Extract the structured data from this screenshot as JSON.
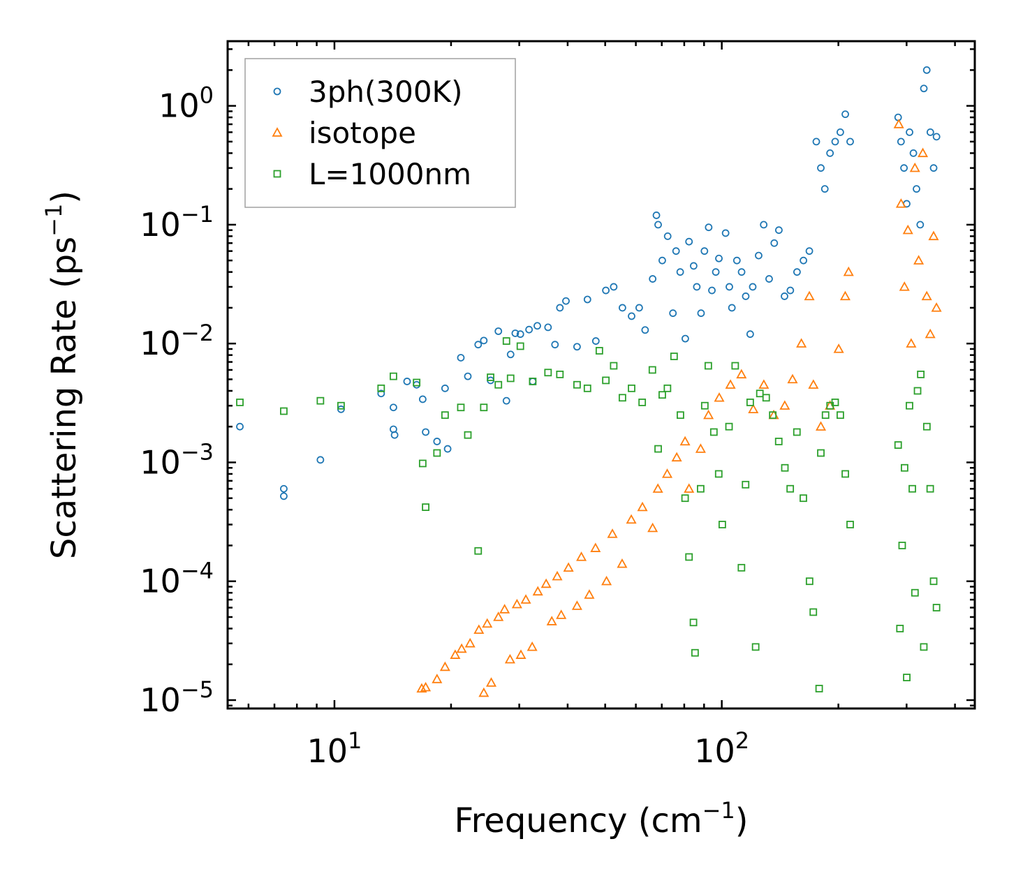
{
  "chart_data": {
    "type": "scatter",
    "xscale": "log",
    "yscale": "log",
    "xlim": [
      5.3,
      450
    ],
    "ylim": [
      8.5e-06,
      3.5
    ],
    "xlabel": "Frequency (cm",
    "xlabel_sup": "−1",
    "xlabel_end": ")",
    "ylabel": "Scattering Rate (ps",
    "ylabel_sup": "−1",
    "ylabel_end": ")",
    "x_ticks": [
      {
        "value": 10,
        "base": "10",
        "exp": "1"
      },
      {
        "value": 100,
        "base": "10",
        "exp": "2"
      }
    ],
    "y_ticks": [
      {
        "value": 1,
        "base": "10",
        "exp": "0"
      },
      {
        "value": 0.1,
        "base": "10",
        "exp": "−1"
      },
      {
        "value": 0.01,
        "base": "10",
        "exp": "−2"
      },
      {
        "value": 0.001,
        "base": "10",
        "exp": "−3"
      },
      {
        "value": 0.0001,
        "base": "10",
        "exp": "−4"
      },
      {
        "value": 1e-05,
        "base": "10",
        "exp": "−5"
      }
    ],
    "legend_position": "upper-left",
    "series": [
      {
        "name": "3ph(300K)",
        "marker": "circle",
        "color": "#1f77b4",
        "points": [
          [
            5.7,
            0.002
          ],
          [
            7.4,
            0.0006
          ],
          [
            7.4,
            0.00052
          ],
          [
            9.2,
            0.00105
          ],
          [
            10.4,
            0.0028
          ],
          [
            13.2,
            0.0038
          ],
          [
            14.2,
            0.0019
          ],
          [
            14.2,
            0.0029
          ],
          [
            14.3,
            0.0017
          ],
          [
            15.4,
            0.0048
          ],
          [
            16.3,
            0.0045
          ],
          [
            16.9,
            0.0034
          ],
          [
            17.2,
            0.0018
          ],
          [
            18.4,
            0.0015
          ],
          [
            19.3,
            0.0042
          ],
          [
            19.6,
            0.0013
          ],
          [
            21.2,
            0.0076
          ],
          [
            22.1,
            0.0053
          ],
          [
            23.5,
            0.0098
          ],
          [
            24.3,
            0.0106
          ],
          [
            25.3,
            0.0049
          ],
          [
            26.5,
            0.0127
          ],
          [
            27.8,
            0.0033
          ],
          [
            28.5,
            0.0081
          ],
          [
            29.3,
            0.0122
          ],
          [
            30.2,
            0.012
          ],
          [
            31.8,
            0.0131
          ],
          [
            32.5,
            0.0048
          ],
          [
            33.4,
            0.0141
          ],
          [
            35.6,
            0.0137
          ],
          [
            37.1,
            0.0098
          ],
          [
            38.2,
            0.02
          ],
          [
            39.6,
            0.0228
          ],
          [
            42.3,
            0.0094
          ],
          [
            45.0,
            0.0235
          ],
          [
            47.3,
            0.0105
          ],
          [
            50.2,
            0.028
          ],
          [
            52.6,
            0.03
          ],
          [
            55.4,
            0.02
          ],
          [
            58.5,
            0.017
          ],
          [
            61.2,
            0.02
          ],
          [
            63.4,
            0.013
          ],
          [
            66.3,
            0.035
          ],
          [
            67.8,
            0.12
          ],
          [
            68.5,
            0.1
          ],
          [
            70.2,
            0.05
          ],
          [
            72.5,
            0.08
          ],
          [
            74.8,
            0.018
          ],
          [
            76.2,
            0.06
          ],
          [
            78.1,
            0.04
          ],
          [
            80.5,
            0.011
          ],
          [
            82.3,
            0.072
          ],
          [
            84.6,
            0.045
          ],
          [
            86.2,
            0.03
          ],
          [
            88.4,
            0.018
          ],
          [
            90.2,
            0.06
          ],
          [
            92.5,
            0.095
          ],
          [
            94.3,
            0.028
          ],
          [
            96.5,
            0.04
          ],
          [
            98.3,
            0.052
          ],
          [
            102.3,
            0.085
          ],
          [
            104.6,
            0.03
          ],
          [
            106.2,
            0.02
          ],
          [
            109.4,
            0.05
          ],
          [
            112.5,
            0.04
          ],
          [
            115.3,
            0.025
          ],
          [
            118.4,
            0.012
          ],
          [
            120.2,
            0.03
          ],
          [
            124.5,
            0.055
          ],
          [
            128.3,
            0.1
          ],
          [
            132.5,
            0.035
          ],
          [
            136.6,
            0.07
          ],
          [
            140.4,
            0.09
          ],
          [
            145.2,
            0.025
          ],
          [
            150.3,
            0.028
          ],
          [
            156.4,
            0.04
          ],
          [
            162.5,
            0.05
          ],
          [
            168.3,
            0.06
          ],
          [
            175.4,
            0.5
          ],
          [
            180.2,
            0.3
          ],
          [
            184.5,
            0.2
          ],
          [
            190.3,
            0.4
          ],
          [
            196.2,
            0.5
          ],
          [
            202.3,
            0.6
          ],
          [
            208.4,
            0.85
          ],
          [
            214.5,
            0.5
          ],
          [
            285.3,
            0.8
          ],
          [
            290.2,
            0.5
          ],
          [
            295.4,
            0.3
          ],
          [
            300.2,
            0.15
          ],
          [
            305.3,
            0.6
          ],
          [
            312.4,
            0.4
          ],
          [
            318.2,
            0.2
          ],
          [
            325.3,
            0.1
          ],
          [
            332.4,
            1.4
          ],
          [
            338.2,
            2.0
          ],
          [
            345.5,
            0.6
          ],
          [
            352.3,
            0.3
          ],
          [
            358.4,
            0.55
          ]
        ]
      },
      {
        "name": "isotope",
        "marker": "triangle",
        "color": "#ff7f0e",
        "points": [
          [
            16.8,
            1.25e-05
          ],
          [
            17.2,
            1.28e-05
          ],
          [
            18.4,
            1.5e-05
          ],
          [
            19.3,
            1.9e-05
          ],
          [
            20.5,
            2.4e-05
          ],
          [
            21.3,
            2.7e-05
          ],
          [
            22.4,
            3e-05
          ],
          [
            23.6,
            3.9e-05
          ],
          [
            24.3,
            1.15e-05
          ],
          [
            24.8,
            4.4e-05
          ],
          [
            25.4,
            1.4e-05
          ],
          [
            26.5,
            5e-05
          ],
          [
            27.5,
            5.8e-05
          ],
          [
            28.4,
            2.2e-05
          ],
          [
            29.6,
            6.4e-05
          ],
          [
            30.3,
            2.4e-05
          ],
          [
            31.2,
            7e-05
          ],
          [
            32.4,
            2.8e-05
          ],
          [
            33.5,
            8.2e-05
          ],
          [
            35.2,
            9.5e-05
          ],
          [
            36.4,
            4.6e-05
          ],
          [
            37.6,
            0.00011
          ],
          [
            38.5,
            5.2e-05
          ],
          [
            40.2,
            0.00013
          ],
          [
            42.3,
            6.2e-05
          ],
          [
            43.4,
            0.00016
          ],
          [
            45.5,
            7.7e-05
          ],
          [
            47.2,
            0.00019
          ],
          [
            50.4,
            0.0001
          ],
          [
            52.2,
            0.00025
          ],
          [
            55.3,
            0.00014
          ],
          [
            58.4,
            0.00033
          ],
          [
            62.4,
            0.00042
          ],
          [
            66.3,
            0.00028
          ],
          [
            68.4,
            0.0006
          ],
          [
            72.3,
            0.0008
          ],
          [
            76.5,
            0.0011
          ],
          [
            80.4,
            0.0015
          ],
          [
            82.3,
            0.0006
          ],
          [
            88.2,
            0.0013
          ],
          [
            92.4,
            0.0025
          ],
          [
            98.5,
            0.0035
          ],
          [
            105.3,
            0.0045
          ],
          [
            112.4,
            0.0055
          ],
          [
            120.6,
            0.0028
          ],
          [
            128.4,
            0.0045
          ],
          [
            136.2,
            0.0025
          ],
          [
            145.4,
            0.003
          ],
          [
            152.3,
            0.005
          ],
          [
            160.5,
            0.01
          ],
          [
            168.3,
            0.025
          ],
          [
            172.4,
            0.0045
          ],
          [
            180.2,
            0.002
          ],
          [
            190.3,
            0.003
          ],
          [
            200.4,
            0.009
          ],
          [
            208.3,
            0.025
          ],
          [
            212.5,
            0.04
          ],
          [
            286.4,
            0.7
          ],
          [
            290.3,
            0.15
          ],
          [
            296.2,
            0.03
          ],
          [
            302.4,
            0.09
          ],
          [
            308.3,
            0.01
          ],
          [
            315.2,
            0.3
          ],
          [
            322.3,
            0.05
          ],
          [
            330.4,
            0.4
          ],
          [
            338.2,
            0.025
          ],
          [
            345.3,
            0.012
          ],
          [
            352.2,
            0.08
          ],
          [
            358.3,
            0.02
          ]
        ]
      },
      {
        "name": "L=1000nm",
        "marker": "square",
        "color": "#2ca02c",
        "points": [
          [
            5.7,
            0.0032
          ],
          [
            7.4,
            0.0027
          ],
          [
            9.2,
            0.0033
          ],
          [
            10.4,
            0.003
          ],
          [
            13.2,
            0.0042
          ],
          [
            14.2,
            0.0053
          ],
          [
            16.3,
            0.0047
          ],
          [
            16.9,
            0.00098
          ],
          [
            17.2,
            0.00042
          ],
          [
            18.4,
            0.0012
          ],
          [
            19.3,
            0.0025
          ],
          [
            21.2,
            0.0029
          ],
          [
            22.1,
            0.0017
          ],
          [
            23.5,
            0.00018
          ],
          [
            24.3,
            0.0029
          ],
          [
            25.3,
            0.0052
          ],
          [
            26.5,
            0.0045
          ],
          [
            27.8,
            0.0105
          ],
          [
            28.5,
            0.0051
          ],
          [
            30.2,
            0.0095
          ],
          [
            32.5,
            0.0048
          ],
          [
            35.6,
            0.0057
          ],
          [
            38.2,
            0.0055
          ],
          [
            42.3,
            0.0045
          ],
          [
            45.0,
            0.0042
          ],
          [
            48.3,
            0.0087
          ],
          [
            50.2,
            0.0049
          ],
          [
            52.6,
            0.0065
          ],
          [
            55.4,
            0.0035
          ],
          [
            58.5,
            0.0042
          ],
          [
            62.3,
            0.0032
          ],
          [
            66.2,
            0.006
          ],
          [
            68.5,
            0.0013
          ],
          [
            70.2,
            0.0037
          ],
          [
            72.4,
            0.0042
          ],
          [
            75.3,
            0.0078
          ],
          [
            78.2,
            0.0025
          ],
          [
            80.4,
            0.0005
          ],
          [
            82.3,
            0.00016
          ],
          [
            84.5,
            4.5e-05
          ],
          [
            85.3,
            2.5e-05
          ],
          [
            88.2,
            0.0006
          ],
          [
            90.4,
            0.003
          ],
          [
            92.3,
            0.0065
          ],
          [
            95.4,
            0.0018
          ],
          [
            98.2,
            0.0008
          ],
          [
            100.3,
            0.0003
          ],
          [
            104.4,
            0.002
          ],
          [
            108.3,
            0.0065
          ],
          [
            112.4,
            0.00013
          ],
          [
            115.2,
            0.00065
          ],
          [
            118.4,
            0.0032
          ],
          [
            122.3,
            2.8e-05
          ],
          [
            125.4,
            0.0038
          ],
          [
            130.2,
            0.0035
          ],
          [
            135.4,
            0.0025
          ],
          [
            140.3,
            0.0015
          ],
          [
            145.5,
            0.0009
          ],
          [
            150.2,
            0.0006
          ],
          [
            156.3,
            0.0018
          ],
          [
            162.4,
            0.0005
          ],
          [
            168.5,
            0.0001
          ],
          [
            172.3,
            5.5e-05
          ],
          [
            178.4,
            1.25e-05
          ],
          [
            180.2,
            0.0012
          ],
          [
            185.3,
            0.0025
          ],
          [
            190.4,
            0.003
          ],
          [
            196.2,
            0.0032
          ],
          [
            202.3,
            0.0025
          ],
          [
            208.4,
            0.0008
          ],
          [
            214.5,
            0.0003
          ],
          [
            285.3,
            0.0014
          ],
          [
            288.4,
            4e-05
          ],
          [
            292.2,
            0.0002
          ],
          [
            296.4,
            0.0009
          ],
          [
            300.3,
            1.55e-05
          ],
          [
            305.2,
            0.003
          ],
          [
            310.4,
            0.0006
          ],
          [
            315.3,
            8e-05
          ],
          [
            320.2,
            0.004
          ],
          [
            326.4,
            0.0055
          ],
          [
            332.3,
            2.8e-05
          ],
          [
            338.4,
            0.002
          ],
          [
            345.2,
            0.0006
          ],
          [
            352.3,
            0.0001
          ],
          [
            358.4,
            6e-05
          ]
        ]
      }
    ]
  }
}
